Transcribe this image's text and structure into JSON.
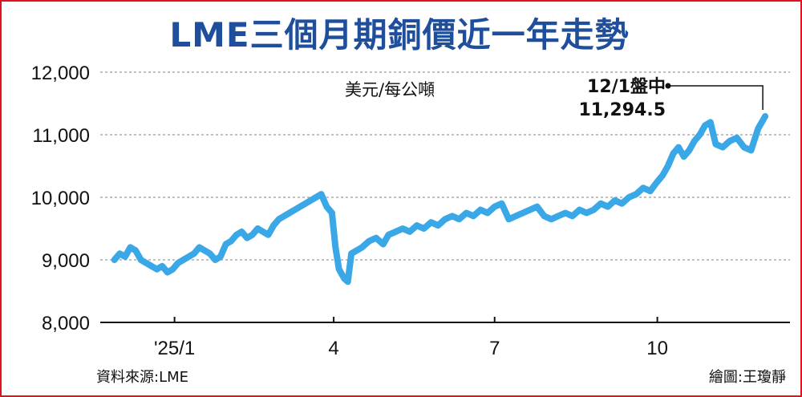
{
  "chart_data": {
    "type": "line",
    "title": "LME三個月期銅價近一年走勢",
    "unit_label": "美元/每公噸",
    "source": "資料來源:LME",
    "credit": "繪圖:王瓊靜",
    "annotation": {
      "label": "12/1盤中",
      "value_text": "11,294.5",
      "x": "2025-12-01",
      "y": 11294.5
    },
    "ylim": [
      8000,
      12000
    ],
    "yticks": [
      8000,
      9000,
      10000,
      11000,
      12000
    ],
    "ytick_labels": [
      "8,000",
      "9,000",
      "10,000",
      "11,000",
      "12,000"
    ],
    "xlim": [
      "2024-11-20",
      "2025-12-15"
    ],
    "xticks": [
      "2025-01-01",
      "2025-04-01",
      "2025-07-01",
      "2025-10-01"
    ],
    "xtick_labels": [
      "'25/1",
      "4",
      "7",
      "10"
    ],
    "grid": true,
    "line_color": "#3aa7e6",
    "series": [
      {
        "x": [
          "2024-11-28",
          "2024-12-01",
          "2024-12-04",
          "2024-12-07",
          "2024-12-10",
          "2024-12-13",
          "2024-12-16",
          "2024-12-19",
          "2024-12-22",
          "2024-12-25",
          "2024-12-28",
          "2024-12-31",
          "2025-01-03",
          "2025-01-06",
          "2025-01-09",
          "2025-01-12",
          "2025-01-15",
          "2025-01-18",
          "2025-01-21",
          "2025-01-24",
          "2025-01-27",
          "2025-01-30",
          "2025-02-02",
          "2025-02-05",
          "2025-02-08",
          "2025-02-11",
          "2025-02-14",
          "2025-02-17",
          "2025-02-20",
          "2025-02-23",
          "2025-02-26",
          "2025-03-01",
          "2025-03-04",
          "2025-03-07",
          "2025-03-10",
          "2025-03-13",
          "2025-03-16",
          "2025-03-19",
          "2025-03-22",
          "2025-03-25",
          "2025-03-28",
          "2025-03-31",
          "2025-04-02",
          "2025-04-04",
          "2025-04-07",
          "2025-04-09",
          "2025-04-11",
          "2025-04-14",
          "2025-04-17",
          "2025-04-21",
          "2025-04-25",
          "2025-04-29",
          "2025-05-02",
          "2025-05-06",
          "2025-05-10",
          "2025-05-14",
          "2025-05-18",
          "2025-05-22",
          "2025-05-26",
          "2025-05-30",
          "2025-06-03",
          "2025-06-07",
          "2025-06-11",
          "2025-06-15",
          "2025-06-19",
          "2025-06-23",
          "2025-06-27",
          "2025-07-01",
          "2025-07-05",
          "2025-07-09",
          "2025-07-13",
          "2025-07-17",
          "2025-07-21",
          "2025-07-25",
          "2025-07-29",
          "2025-08-02",
          "2025-08-06",
          "2025-08-10",
          "2025-08-14",
          "2025-08-18",
          "2025-08-22",
          "2025-08-26",
          "2025-08-30",
          "2025-09-03",
          "2025-09-07",
          "2025-09-11",
          "2025-09-15",
          "2025-09-19",
          "2025-09-23",
          "2025-09-27",
          "2025-10-01",
          "2025-10-04",
          "2025-10-07",
          "2025-10-10",
          "2025-10-13",
          "2025-10-16",
          "2025-10-19",
          "2025-10-22",
          "2025-10-25",
          "2025-10-28",
          "2025-10-31",
          "2025-11-03",
          "2025-11-07",
          "2025-11-11",
          "2025-11-15",
          "2025-11-19",
          "2025-11-23",
          "2025-11-27",
          "2025-12-01"
        ],
        "values": [
          9000,
          9100,
          9050,
          9200,
          9150,
          9000,
          8950,
          8900,
          8850,
          8900,
          8800,
          8850,
          8950,
          9000,
          9050,
          9100,
          9200,
          9150,
          9100,
          9000,
          9050,
          9250,
          9300,
          9400,
          9450,
          9350,
          9400,
          9500,
          9450,
          9400,
          9550,
          9650,
          9700,
          9750,
          9800,
          9850,
          9900,
          9950,
          10000,
          10050,
          9850,
          9750,
          9200,
          8850,
          8700,
          8650,
          9100,
          9150,
          9200,
          9300,
          9350,
          9250,
          9400,
          9450,
          9500,
          9450,
          9550,
          9500,
          9600,
          9550,
          9650,
          9700,
          9650,
          9750,
          9700,
          9800,
          9750,
          9850,
          9900,
          9650,
          9700,
          9750,
          9800,
          9850,
          9700,
          9650,
          9700,
          9750,
          9700,
          9800,
          9750,
          9800,
          9900,
          9850,
          9950,
          9900,
          10000,
          10050,
          10150,
          10100,
          10250,
          10350,
          10500,
          10700,
          10800,
          10650,
          10750,
          10900,
          11000,
          11150,
          11200,
          10850,
          10800,
          10900,
          10950,
          10800,
          10750,
          11100,
          11294.5
        ]
      }
    ]
  }
}
